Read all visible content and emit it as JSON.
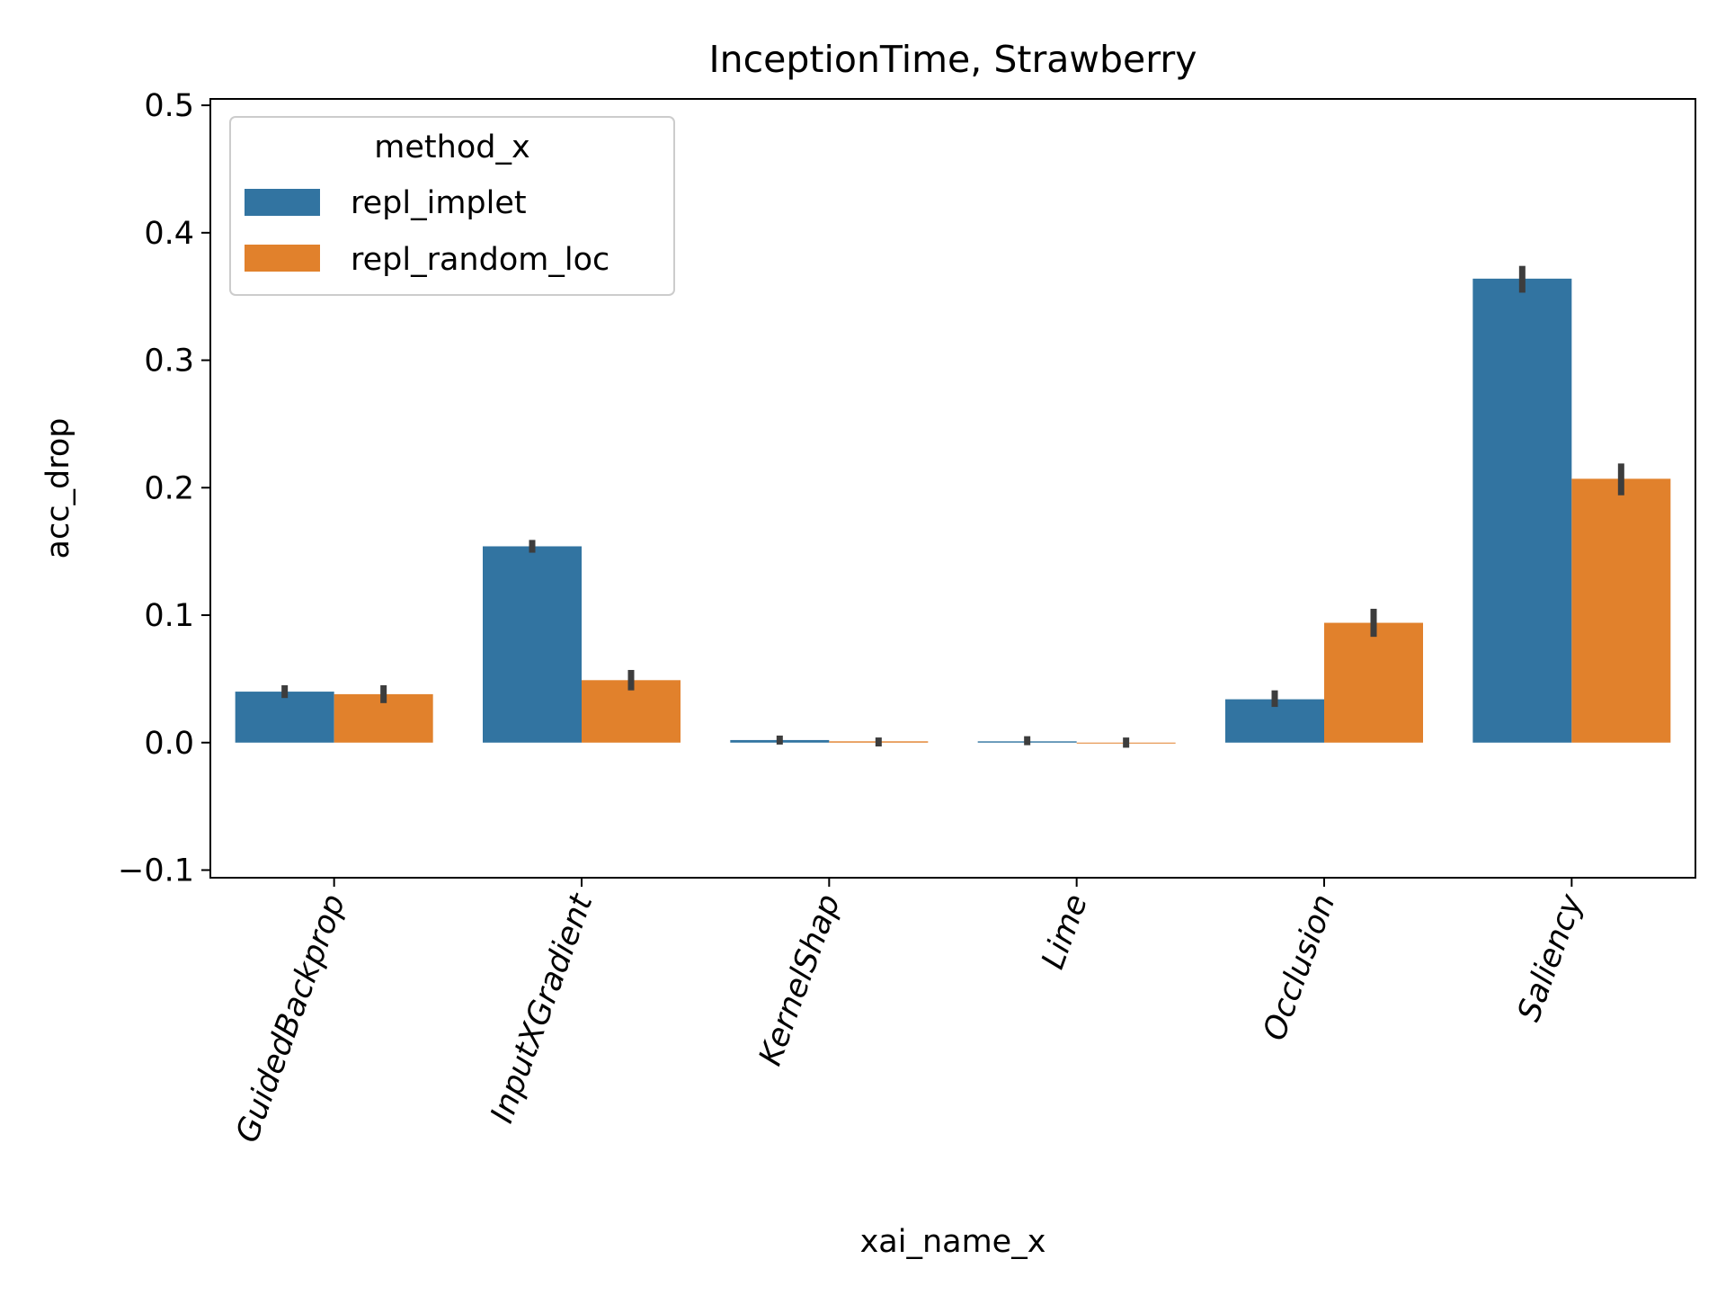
{
  "chart_data": {
    "type": "bar",
    "title": "InceptionTime, Strawberry",
    "xlabel": "xai_name_x",
    "ylabel": "acc_drop",
    "categories": [
      "GuidedBackprop",
      "InputXGradient",
      "KernelShap",
      "Lime",
      "Occlusion",
      "Saliency"
    ],
    "series": [
      {
        "name": "repl_implet",
        "color": "#3274a1",
        "values": [
          0.04,
          0.154,
          0.002,
          0.001,
          0.034,
          0.364
        ],
        "err_low": [
          0.035,
          0.149,
          0.002,
          0.0,
          0.028,
          0.353
        ],
        "err_high": [
          0.045,
          0.159,
          0.002,
          0.003,
          0.041,
          0.374
        ]
      },
      {
        "name": "repl_random_loc",
        "color": "#e1812c",
        "values": [
          0.038,
          0.049,
          0.001,
          0.0,
          0.094,
          0.207
        ],
        "err_low": [
          0.031,
          0.041,
          -0.003,
          -0.004,
          0.083,
          0.194
        ],
        "err_high": [
          0.045,
          0.057,
          0.004,
          0.004,
          0.105,
          0.219
        ]
      }
    ],
    "yticks": [
      "−0.1",
      "0.0",
      "0.1",
      "0.2",
      "0.3",
      "0.4",
      "0.5"
    ],
    "ytick_values": [
      -0.1,
      0.0,
      0.1,
      0.2,
      0.3,
      0.4,
      0.5
    ],
    "ylim": [
      -0.106,
      0.505
    ],
    "legend": {
      "title": "method_x",
      "placement": "upper-left"
    },
    "errorbar_color": "#3d3d3d",
    "grid": false
  }
}
